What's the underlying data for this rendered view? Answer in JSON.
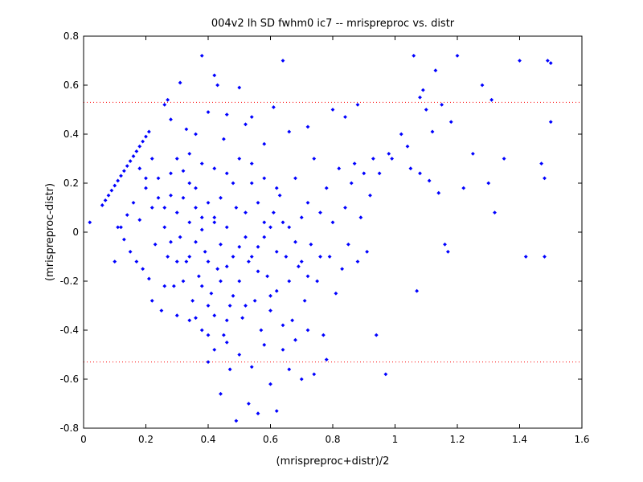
{
  "chart_data": {
    "type": "scatter",
    "title": "004v2 lh SD fwhm0 ic7 -- mrispreproc vs. distr",
    "xlabel": "(mrispreproc+distr)/2",
    "ylabel": "(mrispreproc-distr)",
    "xlim": [
      0,
      1.6
    ],
    "ylim": [
      -0.8,
      0.8
    ],
    "x_ticks": [
      "0",
      "0.2",
      "0.4",
      "0.6",
      "0.8",
      "1",
      "1.2",
      "1.4",
      "1.6"
    ],
    "y_ticks": [
      "0.8",
      "0.6",
      "0.4",
      "0.2",
      "0",
      "-0.2",
      "-0.4",
      "-0.6",
      "-0.8"
    ],
    "reference_lines": [
      0.53,
      -0.53
    ],
    "grid": false,
    "legend": "none",
    "colors": {
      "points": "#0000ff",
      "reference_line": "#ff0000",
      "axes": "#000000"
    },
    "series": [
      {
        "points": [
          [
            0.02,
            0.04
          ],
          [
            0.06,
            0.11
          ],
          [
            0.07,
            0.13
          ],
          [
            0.08,
            0.15
          ],
          [
            0.09,
            0.17
          ],
          [
            0.1,
            0.19
          ],
          [
            0.11,
            0.21
          ],
          [
            0.12,
            0.23
          ],
          [
            0.13,
            0.25
          ],
          [
            0.14,
            0.27
          ],
          [
            0.15,
            0.29
          ],
          [
            0.16,
            0.31
          ],
          [
            0.17,
            0.33
          ],
          [
            0.18,
            0.35
          ],
          [
            0.19,
            0.37
          ],
          [
            0.2,
            0.39
          ],
          [
            0.21,
            0.41
          ],
          [
            0.26,
            0.52
          ],
          [
            0.27,
            0.54
          ],
          [
            0.28,
            0.46
          ],
          [
            0.31,
            0.61
          ],
          [
            0.38,
            0.72
          ],
          [
            0.42,
            0.64
          ],
          [
            0.43,
            0.6
          ],
          [
            0.5,
            0.59
          ],
          [
            0.64,
            0.7
          ],
          [
            0.4,
            0.49
          ],
          [
            0.46,
            0.48
          ],
          [
            0.54,
            0.47
          ],
          [
            0.61,
            0.51
          ],
          [
            0.33,
            0.42
          ],
          [
            0.36,
            0.4
          ],
          [
            0.45,
            0.38
          ],
          [
            0.52,
            0.44
          ],
          [
            0.58,
            0.36
          ],
          [
            0.66,
            0.41
          ],
          [
            0.72,
            0.43
          ],
          [
            0.8,
            0.5
          ],
          [
            0.84,
            0.47
          ],
          [
            0.88,
            0.52
          ],
          [
            0.12,
            0.02
          ],
          [
            0.13,
            -0.03
          ],
          [
            0.14,
            0.07
          ],
          [
            0.15,
            -0.08
          ],
          [
            0.16,
            0.12
          ],
          [
            0.17,
            -0.12
          ],
          [
            0.18,
            0.05
          ],
          [
            0.19,
            -0.15
          ],
          [
            0.2,
            0.18
          ],
          [
            0.21,
            -0.19
          ],
          [
            0.22,
            0.1
          ],
          [
            0.23,
            -0.05
          ],
          [
            0.24,
            0.22
          ],
          [
            0.25,
            -0.32
          ],
          [
            0.26,
            0.02
          ],
          [
            0.27,
            -0.1
          ],
          [
            0.28,
            0.15
          ],
          [
            0.29,
            -0.22
          ],
          [
            0.3,
            0.08
          ],
          [
            0.31,
            -0.02
          ],
          [
            0.32,
            0.25
          ],
          [
            0.33,
            -0.12
          ],
          [
            0.34,
            0.04
          ],
          [
            0.35,
            -0.28
          ],
          [
            0.36,
            0.18
          ],
          [
            0.37,
            -0.18
          ],
          [
            0.38,
            0.01
          ],
          [
            0.39,
            -0.08
          ],
          [
            0.4,
            0.12
          ],
          [
            0.41,
            -0.25
          ],
          [
            0.42,
            0.06
          ],
          [
            0.43,
            -0.15
          ],
          [
            0.44,
            -0.05
          ],
          [
            0.45,
            -0.42
          ],
          [
            0.46,
            0.02
          ],
          [
            0.47,
            -0.3
          ],
          [
            0.48,
            -0.1
          ],
          [
            0.49,
            0.1
          ],
          [
            0.5,
            -0.2
          ],
          [
            0.51,
            -0.35
          ],
          [
            0.52,
            -0.02
          ],
          [
            0.53,
            -0.12
          ],
          [
            0.54,
            0.2
          ],
          [
            0.55,
            -0.28
          ],
          [
            0.56,
            -0.06
          ],
          [
            0.57,
            -0.4
          ],
          [
            0.58,
            0.04
          ],
          [
            0.59,
            -0.18
          ],
          [
            0.6,
            -0.32
          ],
          [
            0.61,
            0.08
          ],
          [
            0.62,
            -0.24
          ],
          [
            0.63,
            0.15
          ],
          [
            0.64,
            -0.48
          ],
          [
            0.65,
            -0.1
          ],
          [
            0.66,
            0.02
          ],
          [
            0.67,
            -0.36
          ],
          [
            0.68,
            0.22
          ],
          [
            0.69,
            -0.14
          ],
          [
            0.7,
            0.06
          ],
          [
            0.71,
            -0.28
          ],
          [
            0.72,
            0.12
          ],
          [
            0.73,
            -0.05
          ],
          [
            0.74,
            0.3
          ],
          [
            0.75,
            -0.2
          ],
          [
            0.76,
            0.08
          ],
          [
            0.77,
            -0.42
          ],
          [
            0.78,
            0.18
          ],
          [
            0.79,
            -0.1
          ],
          [
            0.8,
            0.04
          ],
          [
            0.81,
            -0.25
          ],
          [
            0.82,
            0.26
          ],
          [
            0.83,
            -0.15
          ],
          [
            0.84,
            0.1
          ],
          [
            0.85,
            -0.05
          ],
          [
            0.86,
            0.2
          ],
          [
            0.87,
            0.28
          ],
          [
            0.88,
            -0.12
          ],
          [
            0.89,
            0.06
          ],
          [
            0.9,
            0.24
          ],
          [
            0.91,
            -0.08
          ],
          [
            0.92,
            0.15
          ],
          [
            0.93,
            0.3
          ],
          [
            0.94,
            -0.42
          ],
          [
            0.95,
            0.24
          ],
          [
            0.97,
            -0.58
          ],
          [
            0.98,
            0.32
          ],
          [
            0.99,
            0.3
          ],
          [
            1.02,
            0.4
          ],
          [
            1.04,
            0.35
          ],
          [
            1.06,
            0.72
          ],
          [
            1.08,
            0.55
          ],
          [
            1.09,
            0.58
          ],
          [
            1.1,
            0.5
          ],
          [
            1.12,
            0.41
          ],
          [
            1.13,
            0.66
          ],
          [
            1.15,
            0.52
          ],
          [
            1.18,
            0.45
          ],
          [
            1.2,
            0.72
          ],
          [
            1.22,
            0.18
          ],
          [
            1.25,
            0.32
          ],
          [
            1.28,
            0.6
          ],
          [
            1.3,
            0.2
          ],
          [
            1.31,
            0.54
          ],
          [
            1.32,
            0.08
          ],
          [
            1.35,
            0.3
          ],
          [
            1.4,
            0.7
          ],
          [
            1.42,
            -0.1
          ],
          [
            1.47,
            0.28
          ],
          [
            1.48,
            0.22
          ],
          [
            1.49,
            0.7
          ],
          [
            1.5,
            0.69
          ],
          [
            1.5,
            0.45
          ],
          [
            1.48,
            -0.1
          ],
          [
            1.05,
            0.26
          ],
          [
            1.08,
            0.24
          ],
          [
            1.11,
            0.21
          ],
          [
            1.14,
            0.16
          ],
          [
            1.16,
            -0.05
          ],
          [
            1.17,
            -0.08
          ],
          [
            1.07,
            -0.24
          ],
          [
            0.44,
            -0.66
          ],
          [
            0.47,
            -0.56
          ],
          [
            0.49,
            -0.77
          ],
          [
            0.53,
            -0.7
          ],
          [
            0.56,
            -0.74
          ],
          [
            0.6,
            -0.62
          ],
          [
            0.62,
            -0.73
          ],
          [
            0.66,
            -0.56
          ],
          [
            0.7,
            -0.6
          ],
          [
            0.74,
            -0.58
          ],
          [
            0.78,
            -0.52
          ],
          [
            0.4,
            -0.53
          ],
          [
            0.42,
            -0.48
          ],
          [
            0.46,
            -0.45
          ],
          [
            0.5,
            -0.5
          ],
          [
            0.54,
            -0.55
          ],
          [
            0.58,
            -0.46
          ],
          [
            0.64,
            -0.38
          ],
          [
            0.68,
            -0.44
          ],
          [
            0.72,
            -0.4
          ],
          [
            0.36,
            -0.35
          ],
          [
            0.38,
            -0.22
          ],
          [
            0.4,
            -0.3
          ],
          [
            0.44,
            -0.2
          ],
          [
            0.48,
            -0.26
          ],
          [
            0.52,
            -0.3
          ],
          [
            0.56,
            -0.16
          ],
          [
            0.6,
            -0.26
          ],
          [
            0.66,
            -0.2
          ],
          [
            0.7,
            -0.12
          ],
          [
            0.32,
            -0.2
          ],
          [
            0.34,
            -0.1
          ],
          [
            0.36,
            -0.04
          ],
          [
            0.38,
            0.06
          ],
          [
            0.42,
            0.04
          ],
          [
            0.44,
            0.14
          ],
          [
            0.48,
            0.2
          ],
          [
            0.52,
            0.08
          ],
          [
            0.56,
            0.12
          ],
          [
            0.6,
            0.02
          ],
          [
            0.28,
            0.24
          ],
          [
            0.3,
            0.3
          ],
          [
            0.34,
            0.32
          ],
          [
            0.38,
            0.28
          ],
          [
            0.42,
            0.26
          ],
          [
            0.46,
            0.24
          ],
          [
            0.5,
            0.3
          ],
          [
            0.54,
            0.28
          ],
          [
            0.58,
            0.22
          ],
          [
            0.62,
            0.18
          ],
          [
            0.18,
            0.26
          ],
          [
            0.2,
            0.22
          ],
          [
            0.22,
            0.3
          ],
          [
            0.24,
            0.14
          ],
          [
            0.26,
            0.1
          ],
          [
            0.28,
            -0.04
          ],
          [
            0.3,
            -0.12
          ],
          [
            0.32,
            0.14
          ],
          [
            0.34,
            0.2
          ],
          [
            0.36,
            0.1
          ],
          [
            0.4,
            -0.12
          ],
          [
            0.46,
            -0.14
          ],
          [
            0.5,
            -0.06
          ],
          [
            0.54,
            -0.1
          ],
          [
            0.58,
            -0.02
          ],
          [
            0.62,
            -0.08
          ],
          [
            0.64,
            0.04
          ],
          [
            0.68,
            -0.04
          ],
          [
            0.72,
            -0.18
          ],
          [
            0.76,
            -0.1
          ],
          [
            0.1,
            -0.12
          ],
          [
            0.11,
            0.02
          ],
          [
            0.22,
            -0.28
          ],
          [
            0.26,
            -0.22
          ],
          [
            0.3,
            -0.34
          ],
          [
            0.34,
            -0.36
          ],
          [
            0.38,
            -0.4
          ],
          [
            0.4,
            -0.42
          ],
          [
            0.42,
            -0.34
          ],
          [
            0.46,
            -0.36
          ]
        ]
      }
    ]
  }
}
